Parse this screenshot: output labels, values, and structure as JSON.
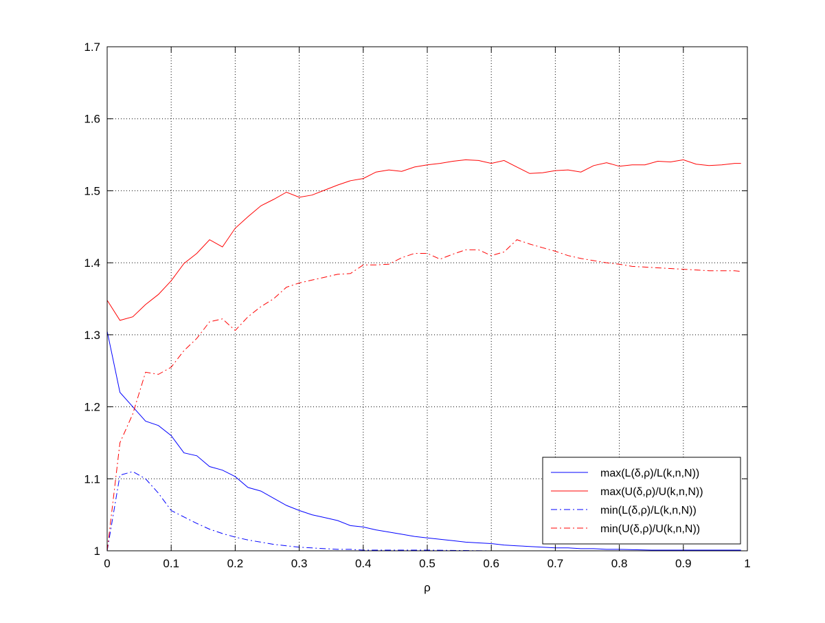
{
  "chart_data": {
    "type": "line",
    "title": "",
    "xlabel": "ρ",
    "ylabel": "",
    "xlim": [
      0,
      1
    ],
    "ylim": [
      1,
      1.7
    ],
    "xticks": [
      0,
      0.1,
      0.2,
      0.3,
      0.4,
      0.5,
      0.6,
      0.7,
      0.8,
      0.9,
      1
    ],
    "xtick_labels": [
      "0",
      "0.1",
      "0.2",
      "0.3",
      "0.4",
      "0.5",
      "0.6",
      "0.7",
      "0.8",
      "0.9",
      "1"
    ],
    "yticks": [
      1,
      1.1,
      1.2,
      1.3,
      1.4,
      1.5,
      1.6,
      1.7
    ],
    "ytick_labels": [
      "1",
      "1.1",
      "1.2",
      "1.3",
      "1.4",
      "1.5",
      "1.6",
      "1.7"
    ],
    "grid": true,
    "legend_position": "bottom-right",
    "series": [
      {
        "name": "max(L(δ,ρ)/L(k,n,N))",
        "color": "#0000ff",
        "style": "solid",
        "x": [
          0,
          0.02,
          0.04,
          0.06,
          0.08,
          0.1,
          0.12,
          0.14,
          0.16,
          0.18,
          0.2,
          0.22,
          0.24,
          0.26,
          0.28,
          0.3,
          0.32,
          0.34,
          0.36,
          0.38,
          0.4,
          0.42,
          0.44,
          0.46,
          0.48,
          0.5,
          0.52,
          0.54,
          0.56,
          0.58,
          0.6,
          0.62,
          0.64,
          0.66,
          0.68,
          0.7,
          0.72,
          0.74,
          0.76,
          0.78,
          0.8,
          0.85,
          0.9,
          0.95,
          0.99
        ],
        "y": [
          1.305,
          1.22,
          1.2,
          1.18,
          1.174,
          1.16,
          1.136,
          1.132,
          1.117,
          1.112,
          1.103,
          1.088,
          1.083,
          1.073,
          1.063,
          1.056,
          1.05,
          1.046,
          1.042,
          1.035,
          1.033,
          1.029,
          1.026,
          1.023,
          1.02,
          1.018,
          1.016,
          1.014,
          1.012,
          1.011,
          1.01,
          1.008,
          1.007,
          1.006,
          1.005,
          1.004,
          1.004,
          1.003,
          1.003,
          1.002,
          1.002,
          1.001,
          1.001,
          1.001,
          1.001
        ]
      },
      {
        "name": "max(U(δ,ρ)/U(k,n,N))",
        "color": "#ff0000",
        "style": "solid",
        "x": [
          0,
          0.02,
          0.04,
          0.06,
          0.08,
          0.1,
          0.12,
          0.14,
          0.16,
          0.18,
          0.2,
          0.22,
          0.24,
          0.26,
          0.28,
          0.3,
          0.32,
          0.34,
          0.36,
          0.38,
          0.4,
          0.42,
          0.44,
          0.46,
          0.48,
          0.5,
          0.52,
          0.54,
          0.56,
          0.58,
          0.6,
          0.62,
          0.64,
          0.66,
          0.68,
          0.7,
          0.72,
          0.74,
          0.76,
          0.78,
          0.8,
          0.82,
          0.84,
          0.86,
          0.88,
          0.9,
          0.92,
          0.94,
          0.96,
          0.98,
          0.99
        ],
        "y": [
          1.348,
          1.32,
          1.325,
          1.342,
          1.356,
          1.375,
          1.399,
          1.413,
          1.432,
          1.422,
          1.448,
          1.464,
          1.479,
          1.488,
          1.498,
          1.491,
          1.494,
          1.501,
          1.508,
          1.514,
          1.517,
          1.526,
          1.529,
          1.527,
          1.533,
          1.536,
          1.538,
          1.541,
          1.543,
          1.542,
          1.538,
          1.542,
          1.533,
          1.524,
          1.525,
          1.528,
          1.529,
          1.526,
          1.535,
          1.539,
          1.534,
          1.536,
          1.536,
          1.541,
          1.54,
          1.543,
          1.537,
          1.535,
          1.536,
          1.538,
          1.538
        ]
      },
      {
        "name": "min(L(δ,ρ)/L(k,n,N))",
        "color": "#0000ff",
        "style": "dashdot",
        "x": [
          0,
          0.02,
          0.04,
          0.06,
          0.08,
          0.1,
          0.12,
          0.14,
          0.16,
          0.18,
          0.2,
          0.22,
          0.24,
          0.26,
          0.28,
          0.3,
          0.32,
          0.34,
          0.36,
          0.38,
          0.4,
          0.45,
          0.5,
          0.6,
          0.7,
          0.8,
          0.9,
          0.99
        ],
        "y": [
          1.0,
          1.105,
          1.11,
          1.1,
          1.08,
          1.056,
          1.047,
          1.038,
          1.03,
          1.024,
          1.019,
          1.015,
          1.012,
          1.009,
          1.007,
          1.005,
          1.004,
          1.003,
          1.002,
          1.002,
          1.001,
          1.001,
          1.001,
          1.0,
          1.0,
          1.0,
          1.0,
          1.0
        ]
      },
      {
        "name": "min(U(δ,ρ)/U(k,n,N))",
        "color": "#ff0000",
        "style": "dashdot",
        "x": [
          0,
          0.02,
          0.04,
          0.06,
          0.08,
          0.1,
          0.12,
          0.14,
          0.16,
          0.18,
          0.2,
          0.22,
          0.24,
          0.26,
          0.28,
          0.3,
          0.32,
          0.34,
          0.36,
          0.38,
          0.4,
          0.42,
          0.44,
          0.46,
          0.48,
          0.5,
          0.52,
          0.54,
          0.56,
          0.58,
          0.6,
          0.62,
          0.64,
          0.66,
          0.68,
          0.7,
          0.72,
          0.74,
          0.76,
          0.78,
          0.8,
          0.82,
          0.84,
          0.86,
          0.88,
          0.9,
          0.92,
          0.94,
          0.96,
          0.98,
          0.99
        ],
        "y": [
          1.0,
          1.15,
          1.19,
          1.248,
          1.245,
          1.255,
          1.278,
          1.295,
          1.318,
          1.322,
          1.306,
          1.325,
          1.339,
          1.35,
          1.366,
          1.372,
          1.376,
          1.38,
          1.384,
          1.385,
          1.397,
          1.397,
          1.398,
          1.407,
          1.413,
          1.413,
          1.405,
          1.412,
          1.418,
          1.418,
          1.41,
          1.415,
          1.432,
          1.426,
          1.421,
          1.416,
          1.41,
          1.406,
          1.403,
          1.4,
          1.398,
          1.395,
          1.394,
          1.393,
          1.392,
          1.391,
          1.39,
          1.389,
          1.389,
          1.389,
          1.388
        ]
      }
    ]
  }
}
